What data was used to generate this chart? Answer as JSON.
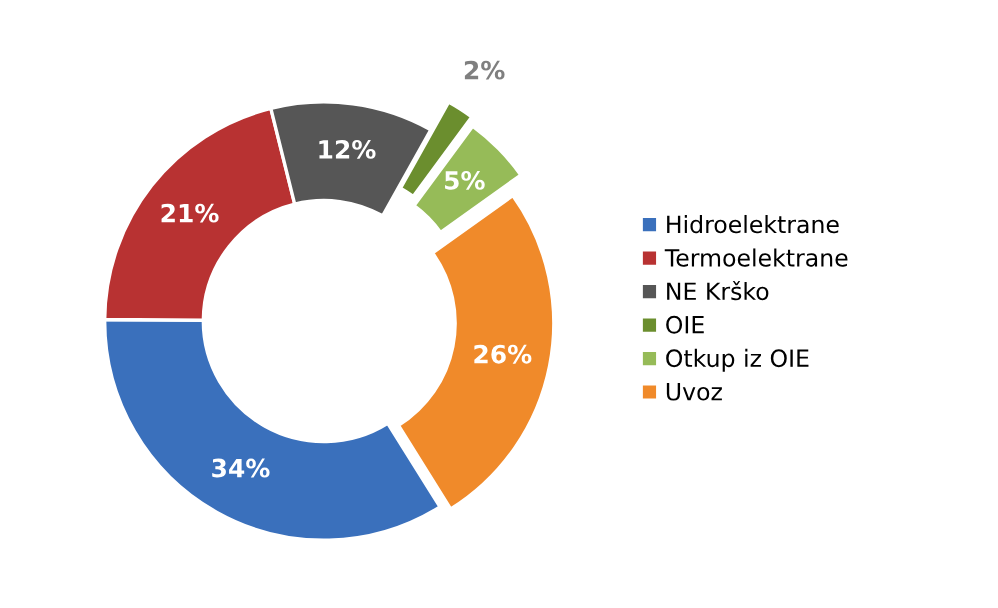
{
  "chart_data": {
    "type": "donut",
    "categories": [
      "Hidroelektrane",
      "Termoelektrane",
      "NE Krško",
      "OIE",
      "Otkup iz OIE",
      "Uvoz"
    ],
    "values": [
      34,
      21,
      12,
      2,
      5,
      26
    ],
    "value_labels": [
      "34%",
      "21%",
      "12%",
      "2%",
      "5%",
      "26%"
    ],
    "colors": [
      "#3a70bc",
      "#b83232",
      "#565656",
      "#6b8e2e",
      "#96bb58",
      "#f08a2a"
    ],
    "legend": "right"
  }
}
